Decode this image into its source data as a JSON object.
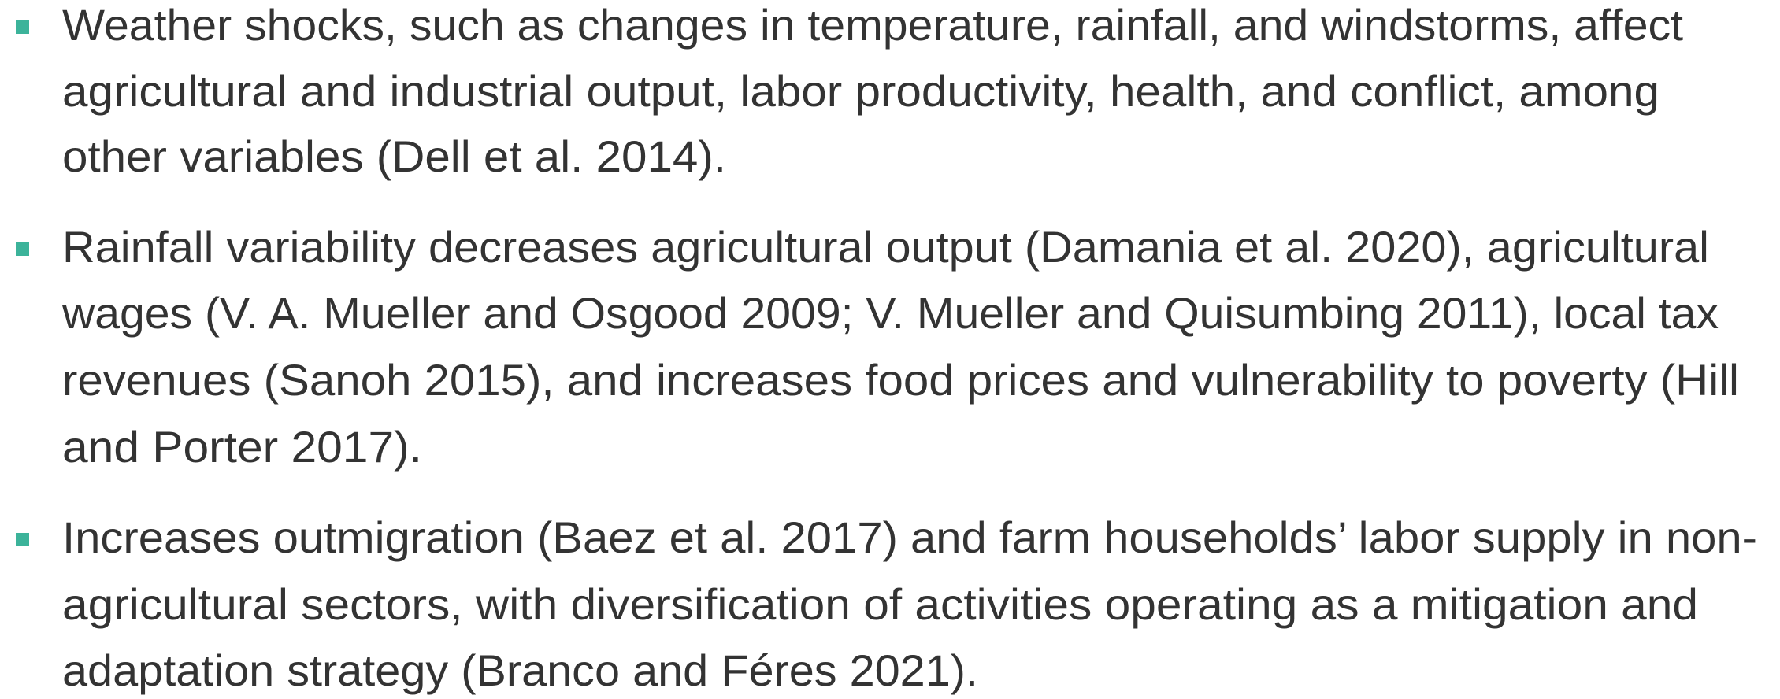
{
  "bullets": [
    {
      "lines": [
        "Weather shocks, such as changes in temperature, rainfall, and windstorms, affect",
        "agricultural and industrial output, labor productivity, health, and conflict, among",
        "other variables (Dell et al. 2014)."
      ]
    },
    {
      "lines": [
        "Rainfall variability decreases agricultural output (Damania et al. 2020), agricultural",
        "wages (V. A. Mueller and Osgood 2009; V. Mueller and Quisumbing 2011), local tax",
        "revenues (Sanoh 2015), and increases food prices and vulnerability to poverty (Hill",
        "and Porter 2017)."
      ]
    },
    {
      "lines": [
        "Increases outmigration (Baez et al. 2017) and farm households’ labor supply in non-",
        "agricultural sectors, with diversification of activities operating as a mitigation and",
        "adaptation strategy (Branco and Féres 2021)."
      ]
    }
  ]
}
